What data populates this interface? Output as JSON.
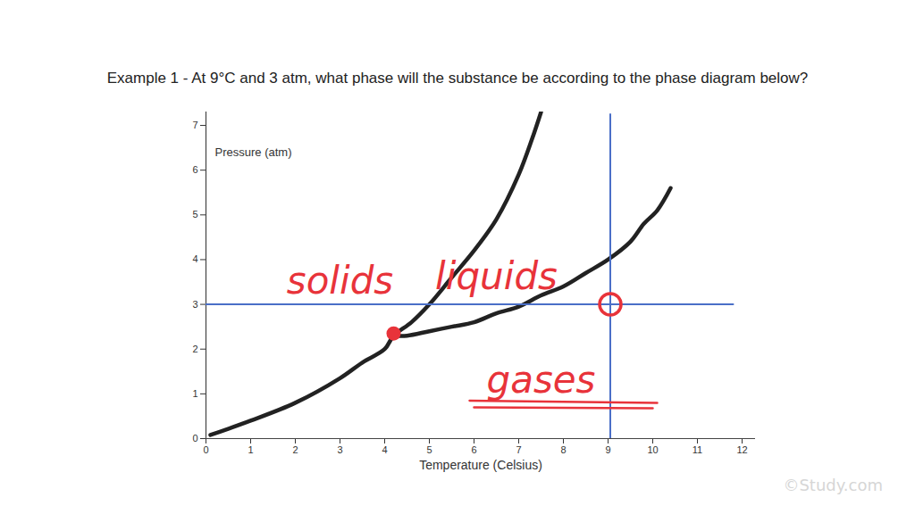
{
  "chart_data": {
    "type": "line",
    "title": "Example 1 - At 9°C and 3 atm, what phase will the substance be according to the phase diagram below?",
    "x_label": "Temperature (Celsius)",
    "y_label": "Pressure (atm)",
    "xlim": [
      0,
      12.3
    ],
    "xticks": [
      0,
      1,
      2,
      3,
      4,
      5,
      6,
      7,
      8,
      9,
      10,
      11,
      12
    ],
    "ylim": [
      0,
      7.3
    ],
    "yticks": [
      0,
      1,
      2,
      3,
      4,
      5,
      6,
      7
    ],
    "grid": false,
    "series": [
      {
        "color": "#222222",
        "x": [
          0.1,
          1,
          2,
          3,
          3.5,
          4,
          4.2,
          4.6,
          5,
          5.5,
          6,
          6.5,
          7,
          7.3,
          7.5
        ],
        "values": [
          0.08,
          0.4,
          0.8,
          1.35,
          1.7,
          2.0,
          2.3,
          2.6,
          3.0,
          3.6,
          4.2,
          4.9,
          5.9,
          6.7,
          7.3
        ]
      },
      {
        "color": "#222222",
        "x": [
          4.2,
          4.5,
          5,
          5.5,
          6,
          6.5,
          7,
          7.5,
          8,
          8.5,
          9,
          9.5,
          9.8,
          10.1,
          10.4
        ],
        "values": [
          2.3,
          2.3,
          2.4,
          2.5,
          2.6,
          2.8,
          2.95,
          3.2,
          3.4,
          3.7,
          4.0,
          4.4,
          4.8,
          5.1,
          5.6
        ]
      },
      {
        "color": "#4a6fc7",
        "x": [
          0,
          11.8
        ],
        "values": [
          3,
          3
        ]
      },
      {
        "color": "#4a6fc7",
        "x": [
          9.05,
          9.05
        ],
        "values": [
          0,
          7.25
        ]
      },
      {
        "color": "#e8333a",
        "x": [
          5.9,
          10.1
        ],
        "values": [
          0.85,
          0.8
        ]
      },
      {
        "color": "#e8333a",
        "x": [
          6.0,
          10.0
        ],
        "values": [
          0.7,
          0.68
        ]
      }
    ],
    "markers": [
      {
        "x": 4.2,
        "y": 2.35,
        "color": "#e8333a",
        "marker": "dot"
      },
      {
        "x": 9.05,
        "y": 3.0,
        "color": "#e8333a",
        "marker": "circle"
      }
    ],
    "annotations": [
      {
        "text": "solids",
        "x": 3.0,
        "y": 3.5,
        "color": "#e8333a"
      },
      {
        "text": "liquids",
        "x": 6.5,
        "y": 3.6,
        "color": "#e8333a"
      },
      {
        "text": "gases",
        "x": 7.5,
        "y": 1.3,
        "color": "#e8333a"
      }
    ],
    "watermark": "©Study.com"
  }
}
